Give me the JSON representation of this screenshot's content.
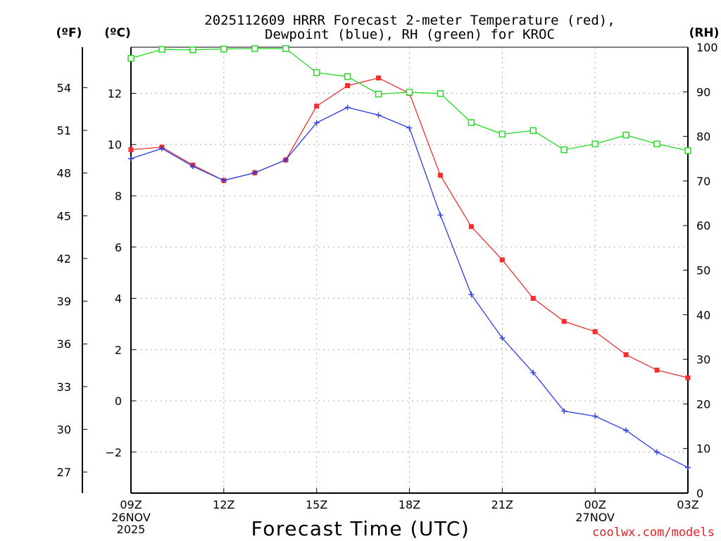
{
  "chart_data": {
    "type": "line",
    "title_line1": "2025112609 HRRR Forecast 2-meter Temperature (red),",
    "title_line2": "Dewpoint (blue), RH (green) for KROC",
    "xlabel": "Forecast Time (UTC)",
    "watermark": "coolwx.com/models",
    "unit_f": "(ºF)",
    "unit_c": "(ºC)",
    "unit_rh": "(RH)",
    "x_hours": [
      0,
      1,
      2,
      3,
      4,
      5,
      6,
      7,
      8,
      9,
      10,
      11,
      12,
      13,
      14,
      15,
      16,
      17,
      18
    ],
    "x_ticks": [
      {
        "hour": 0,
        "label": "09Z",
        "sub1": "26NOV",
        "sub2": "2025"
      },
      {
        "hour": 3,
        "label": "12Z",
        "sub1": "",
        "sub2": ""
      },
      {
        "hour": 6,
        "label": "15Z",
        "sub1": "",
        "sub2": ""
      },
      {
        "hour": 9,
        "label": "18Z",
        "sub1": "",
        "sub2": ""
      },
      {
        "hour": 12,
        "label": "21Z",
        "sub1": "",
        "sub2": ""
      },
      {
        "hour": 15,
        "label": "00Z",
        "sub1": "27NOV",
        "sub2": ""
      },
      {
        "hour": 18,
        "label": "03Z",
        "sub1": "",
        "sub2": ""
      }
    ],
    "c_axis": {
      "ylim": [
        -3.6,
        13.8
      ],
      "ticks": [
        -2,
        0,
        2,
        4,
        6,
        8,
        10,
        12
      ]
    },
    "f_axis": {
      "ticks": [
        27,
        30,
        33,
        36,
        39,
        42,
        45,
        48,
        51,
        54
      ]
    },
    "rh_axis": {
      "ylim": [
        0,
        100
      ],
      "ticks": [
        0,
        10,
        20,
        30,
        40,
        50,
        60,
        70,
        80,
        90,
        100
      ]
    },
    "series": [
      {
        "name": "Temperature",
        "color": "#ee3030",
        "axis": "c",
        "marker": "filled-square",
        "values": [
          9.8,
          9.9,
          9.2,
          8.6,
          8.9,
          9.4,
          11.5,
          12.3,
          12.6,
          12.0,
          8.8,
          6.8,
          5.5,
          4.0,
          3.1,
          2.7,
          1.8,
          1.2,
          0.9
        ]
      },
      {
        "name": "Dewpoint",
        "color": "#2a3ee8",
        "axis": "c",
        "marker": "plus",
        "values": [
          9.45,
          9.85,
          9.15,
          8.6,
          8.9,
          9.4,
          10.85,
          11.45,
          11.15,
          10.65,
          7.25,
          4.15,
          2.45,
          1.1,
          -0.4,
          -0.6,
          -1.15,
          -2.0,
          -2.6
        ]
      },
      {
        "name": "RH",
        "color": "#22dd22",
        "axis": "rh",
        "marker": "open-square",
        "values": [
          97.5,
          99.5,
          99.4,
          99.6,
          99.7,
          99.7,
          94.3,
          93.4,
          89.5,
          89.9,
          89.6,
          83.1,
          80.5,
          81.3,
          77.0,
          78.3,
          80.3,
          78.3,
          76.8
        ]
      }
    ]
  }
}
